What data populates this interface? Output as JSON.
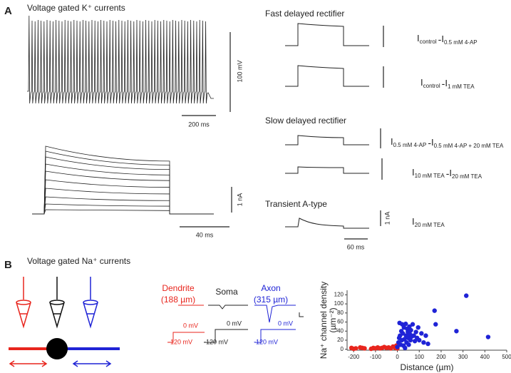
{
  "panel_a": {
    "label": "A",
    "title": "Voltage gated K⁺ currents",
    "scale_bars": [
      "100 mV",
      "200 ms",
      "1 nA",
      "40 ms",
      "1 nA",
      "60 ms"
    ],
    "groups": [
      "Fast delayed rectifier",
      "Slow delayed rectifier",
      "Transient A-type"
    ],
    "equations": [
      {
        "terms": [
          {
            "symbol": "I",
            "sub": "control"
          },
          {
            "symbol": "I",
            "sub": "0.5 mM 4-AP"
          }
        ],
        "operator": "-"
      },
      {
        "terms": [
          {
            "symbol": "I",
            "sub": "control"
          },
          {
            "symbol": "I",
            "sub": "1 mM TEA"
          }
        ],
        "operator": "-"
      },
      {
        "terms": [
          {
            "symbol": "I",
            "sub": "0.5 mM 4-AP"
          },
          {
            "symbol": "I",
            "sub": "0.5 mM 4-AP + 20 mM TEA"
          }
        ],
        "operator": "-"
      },
      {
        "terms": [
          {
            "symbol": "I",
            "sub": "10 mM TEA"
          },
          {
            "symbol": "I",
            "sub": "20 mM TEA"
          }
        ],
        "operator": "-"
      },
      {
        "terms": [
          {
            "symbol": "I",
            "sub": "20 mM TEA"
          }
        ]
      }
    ]
  },
  "panel_b": {
    "label": "B",
    "title": "Voltage gated Na⁺ currents",
    "recordings": [
      {
        "name": "Dendrite",
        "distance": "(188 µm)",
        "step": "0 mV",
        "hold": "-120 mV"
      },
      {
        "name": "Soma",
        "step": "0 mV",
        "hold": "-120 mV"
      },
      {
        "name": "Axon",
        "distance": "(315 µm)",
        "step": "0 mV",
        "hold": "-120 mV"
      }
    ]
  },
  "chart_data": {
    "type": "scatter",
    "xlabel": "Distance (µm)",
    "ylabel": [
      "Na⁺ channel density",
      "(µm⁻²)"
    ],
    "xlim": [
      -230,
      500
    ],
    "ylim": [
      -2,
      130
    ],
    "xticks": [
      -200,
      -100,
      0,
      100,
      200,
      300,
      400,
      500
    ],
    "yticks": [
      0,
      20,
      40,
      60,
      80,
      100,
      120
    ],
    "series": [
      {
        "color": "#e8251d",
        "x": [
          -210,
          -200,
          -190,
          -170,
          -160,
          -150,
          -120,
          -110,
          -100,
          -90,
          -80,
          -70,
          -60,
          -50,
          -40,
          -30,
          -20,
          -10,
          -5,
          0
        ],
        "y": [
          3,
          1,
          2,
          4,
          3,
          2,
          1,
          3,
          2,
          4,
          2,
          3,
          5,
          3,
          4,
          2,
          6,
          3,
          8,
          2
        ]
      },
      {
        "color": "#1f23d6",
        "x": [
          0,
          5,
          8,
          10,
          12,
          15,
          18,
          20,
          22,
          25,
          28,
          30,
          32,
          35,
          38,
          40,
          42,
          45,
          48,
          50,
          52,
          55,
          58,
          60,
          62,
          65,
          70,
          75,
          80,
          85,
          90,
          95,
          100,
          110,
          120,
          130,
          140,
          170,
          175,
          270,
          315,
          415
        ],
        "y": [
          5,
          15,
          25,
          58,
          30,
          10,
          40,
          20,
          55,
          35,
          8,
          48,
          22,
          3,
          56,
          30,
          15,
          45,
          38,
          25,
          10,
          50,
          33,
          20,
          42,
          28,
          55,
          30,
          18,
          38,
          25,
          48,
          20,
          35,
          15,
          30,
          12,
          85,
          55,
          40,
          118,
          27
        ]
      }
    ]
  }
}
